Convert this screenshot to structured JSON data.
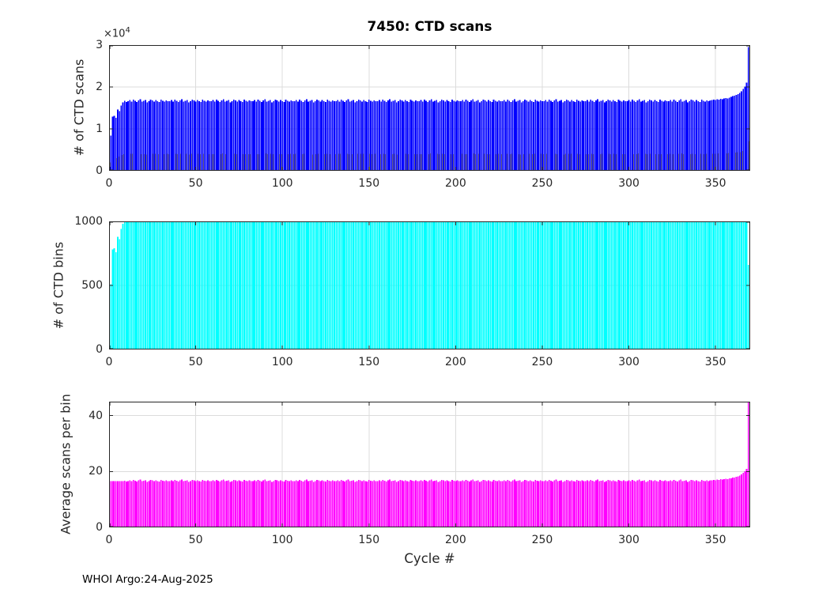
{
  "annotations": {
    "footer": "WHOI Argo:24-Aug-2025"
  },
  "colors": {
    "background": "#ffffff",
    "grid": "#dcdcdc",
    "axis": "#262626",
    "title": "#000000"
  },
  "chart_data": [
    {
      "type": "bar",
      "title": "7450: CTD scans",
      "ylabel": "# of CTD scans",
      "y_multiplier_base": "×10",
      "y_multiplier_exp": "4",
      "color": "#0000ff",
      "edge_series_color": "#f0e100",
      "edge_series_scale": 0.24,
      "xlim": [
        0,
        370
      ],
      "ylim": [
        0,
        30000
      ],
      "yticks": [
        0,
        10000,
        20000,
        30000
      ],
      "ytick_labels": [
        "0",
        "1",
        "2",
        "3"
      ],
      "xticks": [
        0,
        50,
        100,
        150,
        200,
        250,
        300,
        350
      ],
      "xtick_labels": [
        "0",
        "50",
        "100",
        "150",
        "200",
        "250",
        "300",
        "350"
      ],
      "grid": true,
      "values": [
        8400,
        12900,
        13100,
        12600,
        14600,
        14200,
        15600,
        16300,
        16700,
        16400,
        16600,
        16900,
        16500,
        17000,
        16700,
        16400,
        16800,
        17100,
        16500,
        16700,
        16900,
        16300,
        16600,
        17000,
        16800,
        16500,
        16900,
        16600,
        16400,
        17000,
        16700,
        16500,
        16800,
        16600,
        16600,
        16900,
        16500,
        17000,
        16700,
        16400,
        16800,
        17100,
        16500,
        16700,
        16900,
        16300,
        16600,
        17000,
        16800,
        16500,
        16900,
        16600,
        16400,
        17000,
        16700,
        16500,
        16800,
        16600,
        16600,
        16900,
        16500,
        17000,
        16700,
        16400,
        16800,
        17100,
        16500,
        16700,
        16900,
        16300,
        16600,
        17000,
        16800,
        16500,
        16900,
        16600,
        16400,
        17000,
        16700,
        16500,
        16800,
        16600,
        16600,
        16900,
        16500,
        17000,
        16700,
        16400,
        16800,
        17100,
        16500,
        16700,
        16900,
        16300,
        16600,
        17000,
        16800,
        16500,
        16900,
        16600,
        16400,
        17000,
        16700,
        16500,
        16800,
        16600,
        16600,
        16900,
        16500,
        17000,
        16700,
        16400,
        16800,
        17100,
        16500,
        16700,
        16900,
        16300,
        16600,
        17000,
        16800,
        16500,
        16900,
        16600,
        16400,
        17000,
        16700,
        16500,
        16800,
        16600,
        16600,
        16900,
        16500,
        17000,
        16700,
        16400,
        16800,
        17100,
        16500,
        16700,
        16900,
        16300,
        16600,
        17000,
        16800,
        16500,
        16900,
        16600,
        16400,
        17000,
        16700,
        16500,
        16800,
        16600,
        16600,
        16900,
        16500,
        17000,
        16700,
        16400,
        16800,
        17100,
        16500,
        16700,
        16900,
        16300,
        16600,
        17000,
        16800,
        16500,
        16900,
        16600,
        16400,
        17000,
        16700,
        16500,
        16800,
        16600,
        16600,
        16900,
        16500,
        17000,
        16700,
        16400,
        16800,
        17100,
        16500,
        16700,
        16900,
        16300,
        16600,
        17000,
        16800,
        16500,
        16900,
        16600,
        16400,
        17000,
        16700,
        16500,
        16800,
        16600,
        16600,
        16900,
        16500,
        17000,
        16700,
        16400,
        16800,
        17100,
        16500,
        16700,
        16900,
        16300,
        16600,
        17000,
        16800,
        16500,
        16900,
        16600,
        16400,
        17000,
        16700,
        16500,
        16800,
        16600,
        16600,
        16900,
        16500,
        17000,
        16700,
        16400,
        16800,
        17100,
        16500,
        16700,
        16900,
        16300,
        16600,
        17000,
        16800,
        16500,
        16900,
        16600,
        16400,
        17000,
        16700,
        16500,
        16800,
        16600,
        16600,
        16900,
        16500,
        17000,
        16700,
        16400,
        16800,
        17100,
        16500,
        16700,
        16900,
        16300,
        16600,
        17000,
        16800,
        16500,
        16900,
        16600,
        16400,
        17000,
        16700,
        16500,
        16800,
        16600,
        16600,
        16900,
        16500,
        17000,
        16700,
        16400,
        16800,
        17100,
        16500,
        16700,
        16900,
        16300,
        16600,
        17000,
        16800,
        16500,
        16900,
        16600,
        16400,
        17000,
        16700,
        16500,
        16800,
        16600,
        16600,
        16900,
        16500,
        17000,
        16700,
        16400,
        16800,
        17100,
        16500,
        16700,
        16900,
        16300,
        16600,
        17000,
        16800,
        16500,
        16900,
        16600,
        16400,
        17000,
        16700,
        16500,
        16800,
        16600,
        16600,
        16900,
        16500,
        17000,
        16700,
        16400,
        16800,
        17100,
        16500,
        16700,
        16900,
        16300,
        16600,
        17000,
        16800,
        16500,
        16900,
        16600,
        16400,
        17000,
        16700,
        16500,
        16800,
        16600,
        16800,
        16900,
        17000,
        16900,
        17100,
        17000,
        17200,
        17100,
        17300,
        17400,
        17300,
        17500,
        17600,
        17800,
        17900,
        18100,
        18300,
        18600,
        19000,
        19500,
        20100,
        21000,
        29500
      ]
    },
    {
      "type": "bar",
      "title": "",
      "ylabel": "# of CTD bins",
      "color": "#00ffff",
      "xlim": [
        0,
        370
      ],
      "ylim": [
        0,
        1000
      ],
      "yticks": [
        0,
        500,
        1000
      ],
      "ytick_labels": [
        "0",
        "500",
        "1000"
      ],
      "xticks": [
        0,
        50,
        100,
        150,
        200,
        250,
        300,
        350
      ],
      "xtick_labels": [
        "0",
        "50",
        "100",
        "150",
        "200",
        "250",
        "300",
        "350"
      ],
      "grid": true,
      "values": [
        510,
        780,
        790,
        760,
        880,
        860,
        940,
        980,
        1000,
        1000,
        1000,
        1000,
        1000,
        1000,
        1000,
        1000,
        1000,
        1000,
        1000,
        1000,
        1000,
        1000,
        1000,
        1000,
        1000,
        1000,
        1000,
        1000,
        1000,
        1000,
        1000,
        1000,
        1000,
        1000,
        1000,
        1000,
        1000,
        1000,
        1000,
        1000,
        1000,
        1000,
        1000,
        1000,
        1000,
        1000,
        1000,
        1000,
        1000,
        1000,
        1000,
        1000,
        1000,
        1000,
        1000,
        1000,
        1000,
        1000,
        1000,
        1000,
        1000,
        1000,
        1000,
        1000,
        1000,
        1000,
        1000,
        1000,
        1000,
        1000,
        1000,
        1000,
        1000,
        1000,
        1000,
        1000,
        1000,
        1000,
        1000,
        1000,
        1000,
        1000,
        1000,
        1000,
        1000,
        1000,
        1000,
        1000,
        1000,
        1000,
        1000,
        1000,
        1000,
        1000,
        1000,
        1000,
        1000,
        1000,
        1000,
        1000,
        1000,
        1000,
        1000,
        1000,
        1000,
        1000,
        1000,
        1000,
        1000,
        1000,
        1000,
        1000,
        1000,
        1000,
        1000,
        1000,
        1000,
        1000,
        1000,
        1000,
        1000,
        1000,
        1000,
        1000,
        1000,
        1000,
        1000,
        1000,
        1000,
        1000,
        1000,
        1000,
        1000,
        1000,
        1000,
        1000,
        1000,
        1000,
        1000,
        1000,
        1000,
        1000,
        1000,
        1000,
        1000,
        1000,
        1000,
        1000,
        1000,
        1000,
        1000,
        1000,
        1000,
        1000,
        1000,
        1000,
        1000,
        1000,
        1000,
        1000,
        1000,
        1000,
        1000,
        1000,
        1000,
        1000,
        1000,
        1000,
        1000,
        1000,
        1000,
        1000,
        1000,
        1000,
        1000,
        1000,
        1000,
        1000,
        1000,
        1000,
        1000,
        1000,
        1000,
        1000,
        1000,
        1000,
        1000,
        1000,
        1000,
        1000,
        1000,
        1000,
        1000,
        1000,
        1000,
        1000,
        1000,
        1000,
        1000,
        1000,
        1000,
        1000,
        1000,
        1000,
        1000,
        1000,
        1000,
        1000,
        1000,
        1000,
        1000,
        1000,
        1000,
        1000,
        1000,
        1000,
        1000,
        1000,
        1000,
        1000,
        1000,
        1000,
        1000,
        1000,
        1000,
        1000,
        1000,
        1000,
        1000,
        1000,
        1000,
        1000,
        1000,
        1000,
        1000,
        1000,
        1000,
        1000,
        1000,
        1000,
        1000,
        1000,
        1000,
        1000,
        1000,
        1000,
        1000,
        1000,
        1000,
        1000,
        1000,
        1000,
        1000,
        1000,
        1000,
        1000,
        1000,
        1000,
        1000,
        1000,
        1000,
        1000,
        1000,
        1000,
        1000,
        1000,
        1000,
        1000,
        1000,
        1000,
        1000,
        1000,
        1000,
        1000,
        1000,
        1000,
        1000,
        1000,
        1000,
        1000,
        1000,
        1000,
        1000,
        1000,
        1000,
        1000,
        1000,
        1000,
        1000,
        1000,
        1000,
        1000,
        1000,
        1000,
        1000,
        1000,
        1000,
        1000,
        1000,
        1000,
        1000,
        1000,
        1000,
        1000,
        1000,
        1000,
        1000,
        1000,
        1000,
        1000,
        1000,
        1000,
        1000,
        1000,
        1000,
        1000,
        1000,
        1000,
        1000,
        1000,
        1000,
        1000,
        1000,
        1000,
        1000,
        1000,
        1000,
        1000,
        1000,
        1000,
        1000,
        1000,
        1000,
        1000,
        1000,
        1000,
        1000,
        1000,
        1000,
        1000,
        1000,
        1000,
        1000,
        1000,
        1000,
        1000,
        1000,
        1000,
        1000,
        1000,
        1000,
        1000,
        1000,
        1000,
        1000,
        1000,
        1000,
        1000,
        1000,
        1000,
        1000,
        1000,
        1000,
        1000,
        1000,
        1000,
        1000,
        1000,
        660
      ]
    },
    {
      "type": "bar",
      "title": "",
      "ylabel": "Average scans per bin",
      "xlabel": "Cycle #",
      "color": "#ff00ff",
      "xlim": [
        0,
        370
      ],
      "ylim": [
        0,
        45
      ],
      "yticks": [
        0,
        20,
        40
      ],
      "ytick_labels": [
        "0",
        "20",
        "40"
      ],
      "xticks": [
        0,
        50,
        100,
        150,
        200,
        250,
        300,
        350
      ],
      "xtick_labels": [
        "0",
        "50",
        "100",
        "150",
        "200",
        "250",
        "300",
        "350"
      ],
      "grid": true,
      "values": [
        16.5,
        16.5,
        16.6,
        16.6,
        16.6,
        16.5,
        16.6,
        16.6,
        16.7,
        16.4,
        16.6,
        16.9,
        16.5,
        17.0,
        16.7,
        16.4,
        16.8,
        17.1,
        16.5,
        16.7,
        16.9,
        16.3,
        16.6,
        17.0,
        16.8,
        16.5,
        16.9,
        16.6,
        16.4,
        17.0,
        16.7,
        16.5,
        16.8,
        16.6,
        16.6,
        16.9,
        16.5,
        17.0,
        16.7,
        16.4,
        16.8,
        17.1,
        16.5,
        16.7,
        16.9,
        16.3,
        16.6,
        17.0,
        16.8,
        16.5,
        16.9,
        16.6,
        16.4,
        17.0,
        16.7,
        16.5,
        16.8,
        16.6,
        16.6,
        16.9,
        16.5,
        17.0,
        16.7,
        16.4,
        16.8,
        17.1,
        16.5,
        16.7,
        16.9,
        16.3,
        16.6,
        17.0,
        16.8,
        16.5,
        16.9,
        16.6,
        16.4,
        17.0,
        16.7,
        16.5,
        16.8,
        16.6,
        16.6,
        16.9,
        16.5,
        17.0,
        16.7,
        16.4,
        16.8,
        17.1,
        16.5,
        16.7,
        16.9,
        16.3,
        16.6,
        17.0,
        16.8,
        16.5,
        16.9,
        16.6,
        16.4,
        17.0,
        16.7,
        16.5,
        16.8,
        16.6,
        16.6,
        16.9,
        16.5,
        17.0,
        16.7,
        16.4,
        16.8,
        17.1,
        16.5,
        16.7,
        16.9,
        16.3,
        16.6,
        17.0,
        16.8,
        16.5,
        16.9,
        16.6,
        16.4,
        17.0,
        16.7,
        16.5,
        16.8,
        16.6,
        16.6,
        16.9,
        16.5,
        17.0,
        16.7,
        16.4,
        16.8,
        17.1,
        16.5,
        16.7,
        16.9,
        16.3,
        16.6,
        17.0,
        16.8,
        16.5,
        16.9,
        16.6,
        16.4,
        17.0,
        16.7,
        16.5,
        16.8,
        16.6,
        16.6,
        16.9,
        16.5,
        17.0,
        16.7,
        16.4,
        16.8,
        17.1,
        16.5,
        16.7,
        16.9,
        16.3,
        16.6,
        17.0,
        16.8,
        16.5,
        16.9,
        16.6,
        16.4,
        17.0,
        16.7,
        16.5,
        16.8,
        16.6,
        16.6,
        16.9,
        16.5,
        17.0,
        16.7,
        16.4,
        16.8,
        17.1,
        16.5,
        16.7,
        16.9,
        16.3,
        16.6,
        17.0,
        16.8,
        16.5,
        16.9,
        16.6,
        16.4,
        17.0,
        16.7,
        16.5,
        16.8,
        16.6,
        16.6,
        16.9,
        16.5,
        17.0,
        16.7,
        16.4,
        16.8,
        17.1,
        16.5,
        16.7,
        16.9,
        16.3,
        16.6,
        17.0,
        16.8,
        16.5,
        16.9,
        16.6,
        16.4,
        17.0,
        16.7,
        16.5,
        16.8,
        16.6,
        16.6,
        16.9,
        16.5,
        17.0,
        16.7,
        16.4,
        16.8,
        17.1,
        16.5,
        16.7,
        16.9,
        16.3,
        16.6,
        17.0,
        16.8,
        16.5,
        16.9,
        16.6,
        16.4,
        17.0,
        16.7,
        16.5,
        16.8,
        16.6,
        16.6,
        16.9,
        16.5,
        17.0,
        16.7,
        16.4,
        16.8,
        17.1,
        16.5,
        16.7,
        16.9,
        16.3,
        16.6,
        17.0,
        16.8,
        16.5,
        16.9,
        16.6,
        16.4,
        17.0,
        16.7,
        16.5,
        16.8,
        16.6,
        16.6,
        16.9,
        16.5,
        17.0,
        16.7,
        16.4,
        16.8,
        17.1,
        16.5,
        16.7,
        16.9,
        16.3,
        16.6,
        17.0,
        16.8,
        16.5,
        16.9,
        16.6,
        16.4,
        17.0,
        16.7,
        16.5,
        16.8,
        16.6,
        16.6,
        16.9,
        16.5,
        17.0,
        16.7,
        16.4,
        16.8,
        17.1,
        16.5,
        16.7,
        16.9,
        16.3,
        16.6,
        17.0,
        16.8,
        16.5,
        16.9,
        16.6,
        16.4,
        17.0,
        16.7,
        16.5,
        16.8,
        16.6,
        16.6,
        16.9,
        16.5,
        17.0,
        16.7,
        16.4,
        16.8,
        17.1,
        16.5,
        16.7,
        16.9,
        16.3,
        16.6,
        17.0,
        16.8,
        16.5,
        16.9,
        16.6,
        16.4,
        17.0,
        16.7,
        16.5,
        16.8,
        16.6,
        16.8,
        16.9,
        17.0,
        16.9,
        17.1,
        17.0,
        17.2,
        17.1,
        17.3,
        17.4,
        17.3,
        17.5,
        17.6,
        17.8,
        17.9,
        18.1,
        18.3,
        18.6,
        19.0,
        19.5,
        20.1,
        21.0,
        44.8
      ]
    }
  ]
}
